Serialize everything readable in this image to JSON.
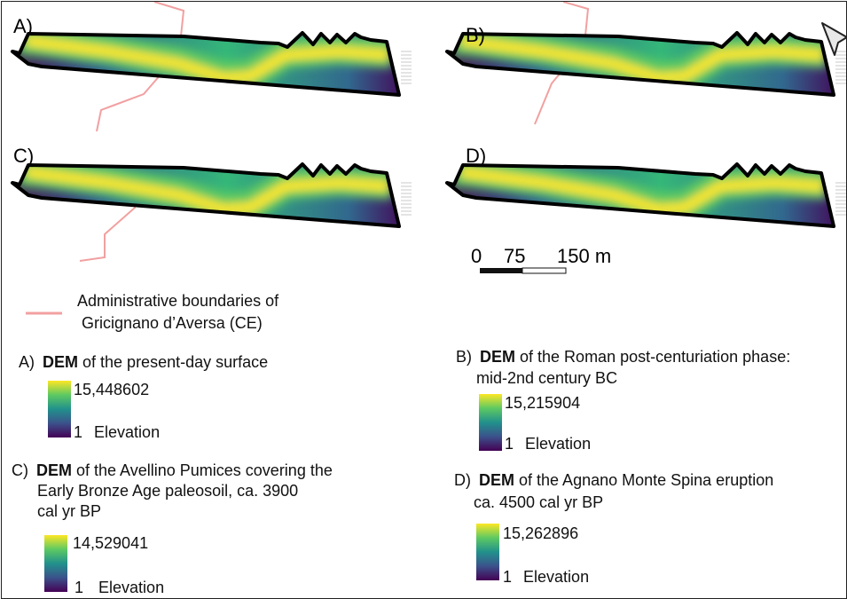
{
  "panels": [
    {
      "label": "A)"
    },
    {
      "label": "B)"
    },
    {
      "label": "C)"
    },
    {
      "label": "D)"
    }
  ],
  "north_arrow": "north-arrow-icon",
  "scale_bar": {
    "tick_0": "0",
    "tick_1": "75",
    "tick_2": "150 m"
  },
  "boundary_legend": {
    "line1": "Administrative boundaries of",
    "line2": "Gricignano d’Aversa (CE)",
    "color": "#f2a0a0"
  },
  "legends": [
    {
      "key": "A)",
      "bold": "DEM",
      "rest_line1": " of the present-day surface",
      "line2": "",
      "line3": "",
      "max": "15,448602",
      "min": "1",
      "unit": "Elevation"
    },
    {
      "key": "B)",
      "bold": "DEM",
      "rest_line1": " of the Roman post-centuriation phase:",
      "line2": "mid-2nd century BC",
      "line3": "",
      "max": "15,215904",
      "min": "1",
      "unit": "Elevation"
    },
    {
      "key": "C)",
      "bold": "DEM",
      "rest_line1": " of the Avellino Pumices covering the",
      "line2": "Early Bronze Age paleosoil, ca. 3900",
      "line3": "cal yr BP",
      "max": "14,529041",
      "min": "1",
      "unit": "Elevation"
    },
    {
      "key": "D)",
      "bold": "DEM",
      "rest_line1": " of the Agnano Monte Spina eruption",
      "line2": "ca. 4500 cal yr BP",
      "line3": "",
      "max": "15,262896",
      "min": "1",
      "unit": "Elevation"
    }
  ],
  "colors": {
    "viridis_low": "#440154",
    "viridis_mid": "#21918c",
    "viridis_high": "#fde725",
    "outline": "#000000"
  }
}
